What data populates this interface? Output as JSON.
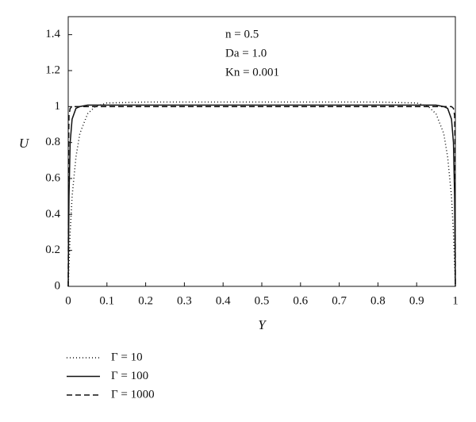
{
  "chart_data": {
    "type": "line",
    "xlabel": "Y",
    "ylabel": "U",
    "annotations": [
      "n = 0.5",
      "Da = 1.0",
      "Kn = 0.001"
    ],
    "xlim": [
      0,
      1
    ],
    "ylim": [
      0,
      1.5
    ],
    "xticks": [
      0,
      0.1,
      0.2,
      0.3,
      0.4,
      0.5,
      0.6,
      0.7,
      0.8,
      0.9,
      1
    ],
    "yticks": [
      0,
      0.2,
      0.4,
      0.6,
      0.8,
      1,
      1.2,
      1.4
    ],
    "legend": "bottom",
    "series": [
      {
        "name": "Γ = 10",
        "color": "#111111",
        "dash": "1,3",
        "x": [
          0,
          0.005,
          0.01,
          0.02,
          0.03,
          0.05,
          0.07,
          0.1,
          0.2,
          0.5,
          0.8,
          0.9,
          0.93,
          0.95,
          0.97,
          0.98,
          0.99,
          0.995,
          1
        ],
        "values": [
          0,
          0.3,
          0.5,
          0.72,
          0.85,
          0.96,
          1.0,
          1.02,
          1.025,
          1.025,
          1.025,
          1.02,
          1.0,
          0.96,
          0.85,
          0.72,
          0.5,
          0.3,
          0
        ]
      },
      {
        "name": "Γ = 100",
        "color": "#111111",
        "dash": "none",
        "x": [
          0,
          0.002,
          0.005,
          0.01,
          0.02,
          0.03,
          0.05,
          0.5,
          0.95,
          0.97,
          0.98,
          0.99,
          0.995,
          0.998,
          1
        ],
        "values": [
          0,
          0.5,
          0.8,
          0.93,
          0.99,
          1.0,
          1.008,
          1.008,
          1.008,
          1.0,
          0.99,
          0.93,
          0.8,
          0.5,
          0
        ]
      },
      {
        "name": "Γ = 1000",
        "color": "#111111",
        "dash": "7,4",
        "x": [
          0,
          0.001,
          0.002,
          0.005,
          0.01,
          0.5,
          0.99,
          0.995,
          0.998,
          0.999,
          1
        ],
        "values": [
          0,
          0.8,
          0.95,
          0.99,
          1.0,
          1.0,
          1.0,
          0.99,
          0.95,
          0.8,
          0
        ]
      }
    ]
  }
}
